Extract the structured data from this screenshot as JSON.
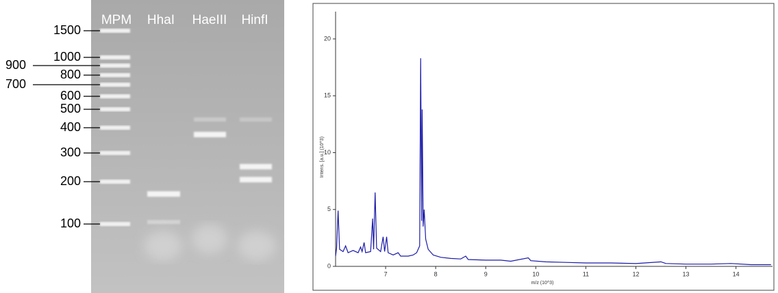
{
  "gel": {
    "lanes": [
      "MPM",
      "HhaI",
      "HaeIII",
      "HinfI"
    ],
    "ladder": [
      "1500",
      "1000",
      "900",
      "800",
      "700",
      "600",
      "500",
      "400",
      "300",
      "200",
      "100"
    ]
  },
  "chart_data": {
    "type": "line",
    "x_label": "m/z (10^3)",
    "y_label": "Intens. [a.u.] (10^3)",
    "xlim": [
      6,
      14.73
    ],
    "ylim": [
      0,
      22.4
    ],
    "xticks": [
      7,
      8,
      9,
      10,
      11,
      12,
      13,
      14
    ],
    "yticks": [
      0,
      5,
      10,
      15,
      20
    ],
    "series": [
      {
        "color": "#1a1aa8",
        "x": [
          6.0,
          6.02,
          6.05,
          6.08,
          6.15,
          6.2,
          6.25,
          6.35,
          6.45,
          6.5,
          6.53,
          6.57,
          6.6,
          6.7,
          6.74,
          6.76,
          6.79,
          6.82,
          6.9,
          6.95,
          6.98,
          7.02,
          7.05,
          7.15,
          7.25,
          7.3,
          7.45,
          7.55,
          7.62,
          7.68,
          7.7,
          7.72,
          7.73,
          7.75,
          7.77,
          7.8,
          7.85,
          7.95,
          8.1,
          8.3,
          8.5,
          8.6,
          8.65,
          9.0,
          9.3,
          9.5,
          9.85,
          9.9,
          10.2,
          10.6,
          11.0,
          11.5,
          12.0,
          12.5,
          12.6,
          13.0,
          13.5,
          13.9,
          14.3,
          14.7
        ],
        "values": [
          0.9,
          1.6,
          4.9,
          1.5,
          1.3,
          1.8,
          1.2,
          1.4,
          1.2,
          1.7,
          1.3,
          2.1,
          1.2,
          1.3,
          4.2,
          1.5,
          6.5,
          1.6,
          1.3,
          2.6,
          1.3,
          2.6,
          1.2,
          1.0,
          1.2,
          0.9,
          0.9,
          1.0,
          1.2,
          1.8,
          18.3,
          4.0,
          13.8,
          3.5,
          5.0,
          2.4,
          1.5,
          1.0,
          0.8,
          0.7,
          0.65,
          0.9,
          0.6,
          0.55,
          0.55,
          0.45,
          0.75,
          0.5,
          0.4,
          0.35,
          0.3,
          0.3,
          0.25,
          0.4,
          0.25,
          0.2,
          0.2,
          0.25,
          0.15,
          0.15
        ]
      }
    ]
  }
}
